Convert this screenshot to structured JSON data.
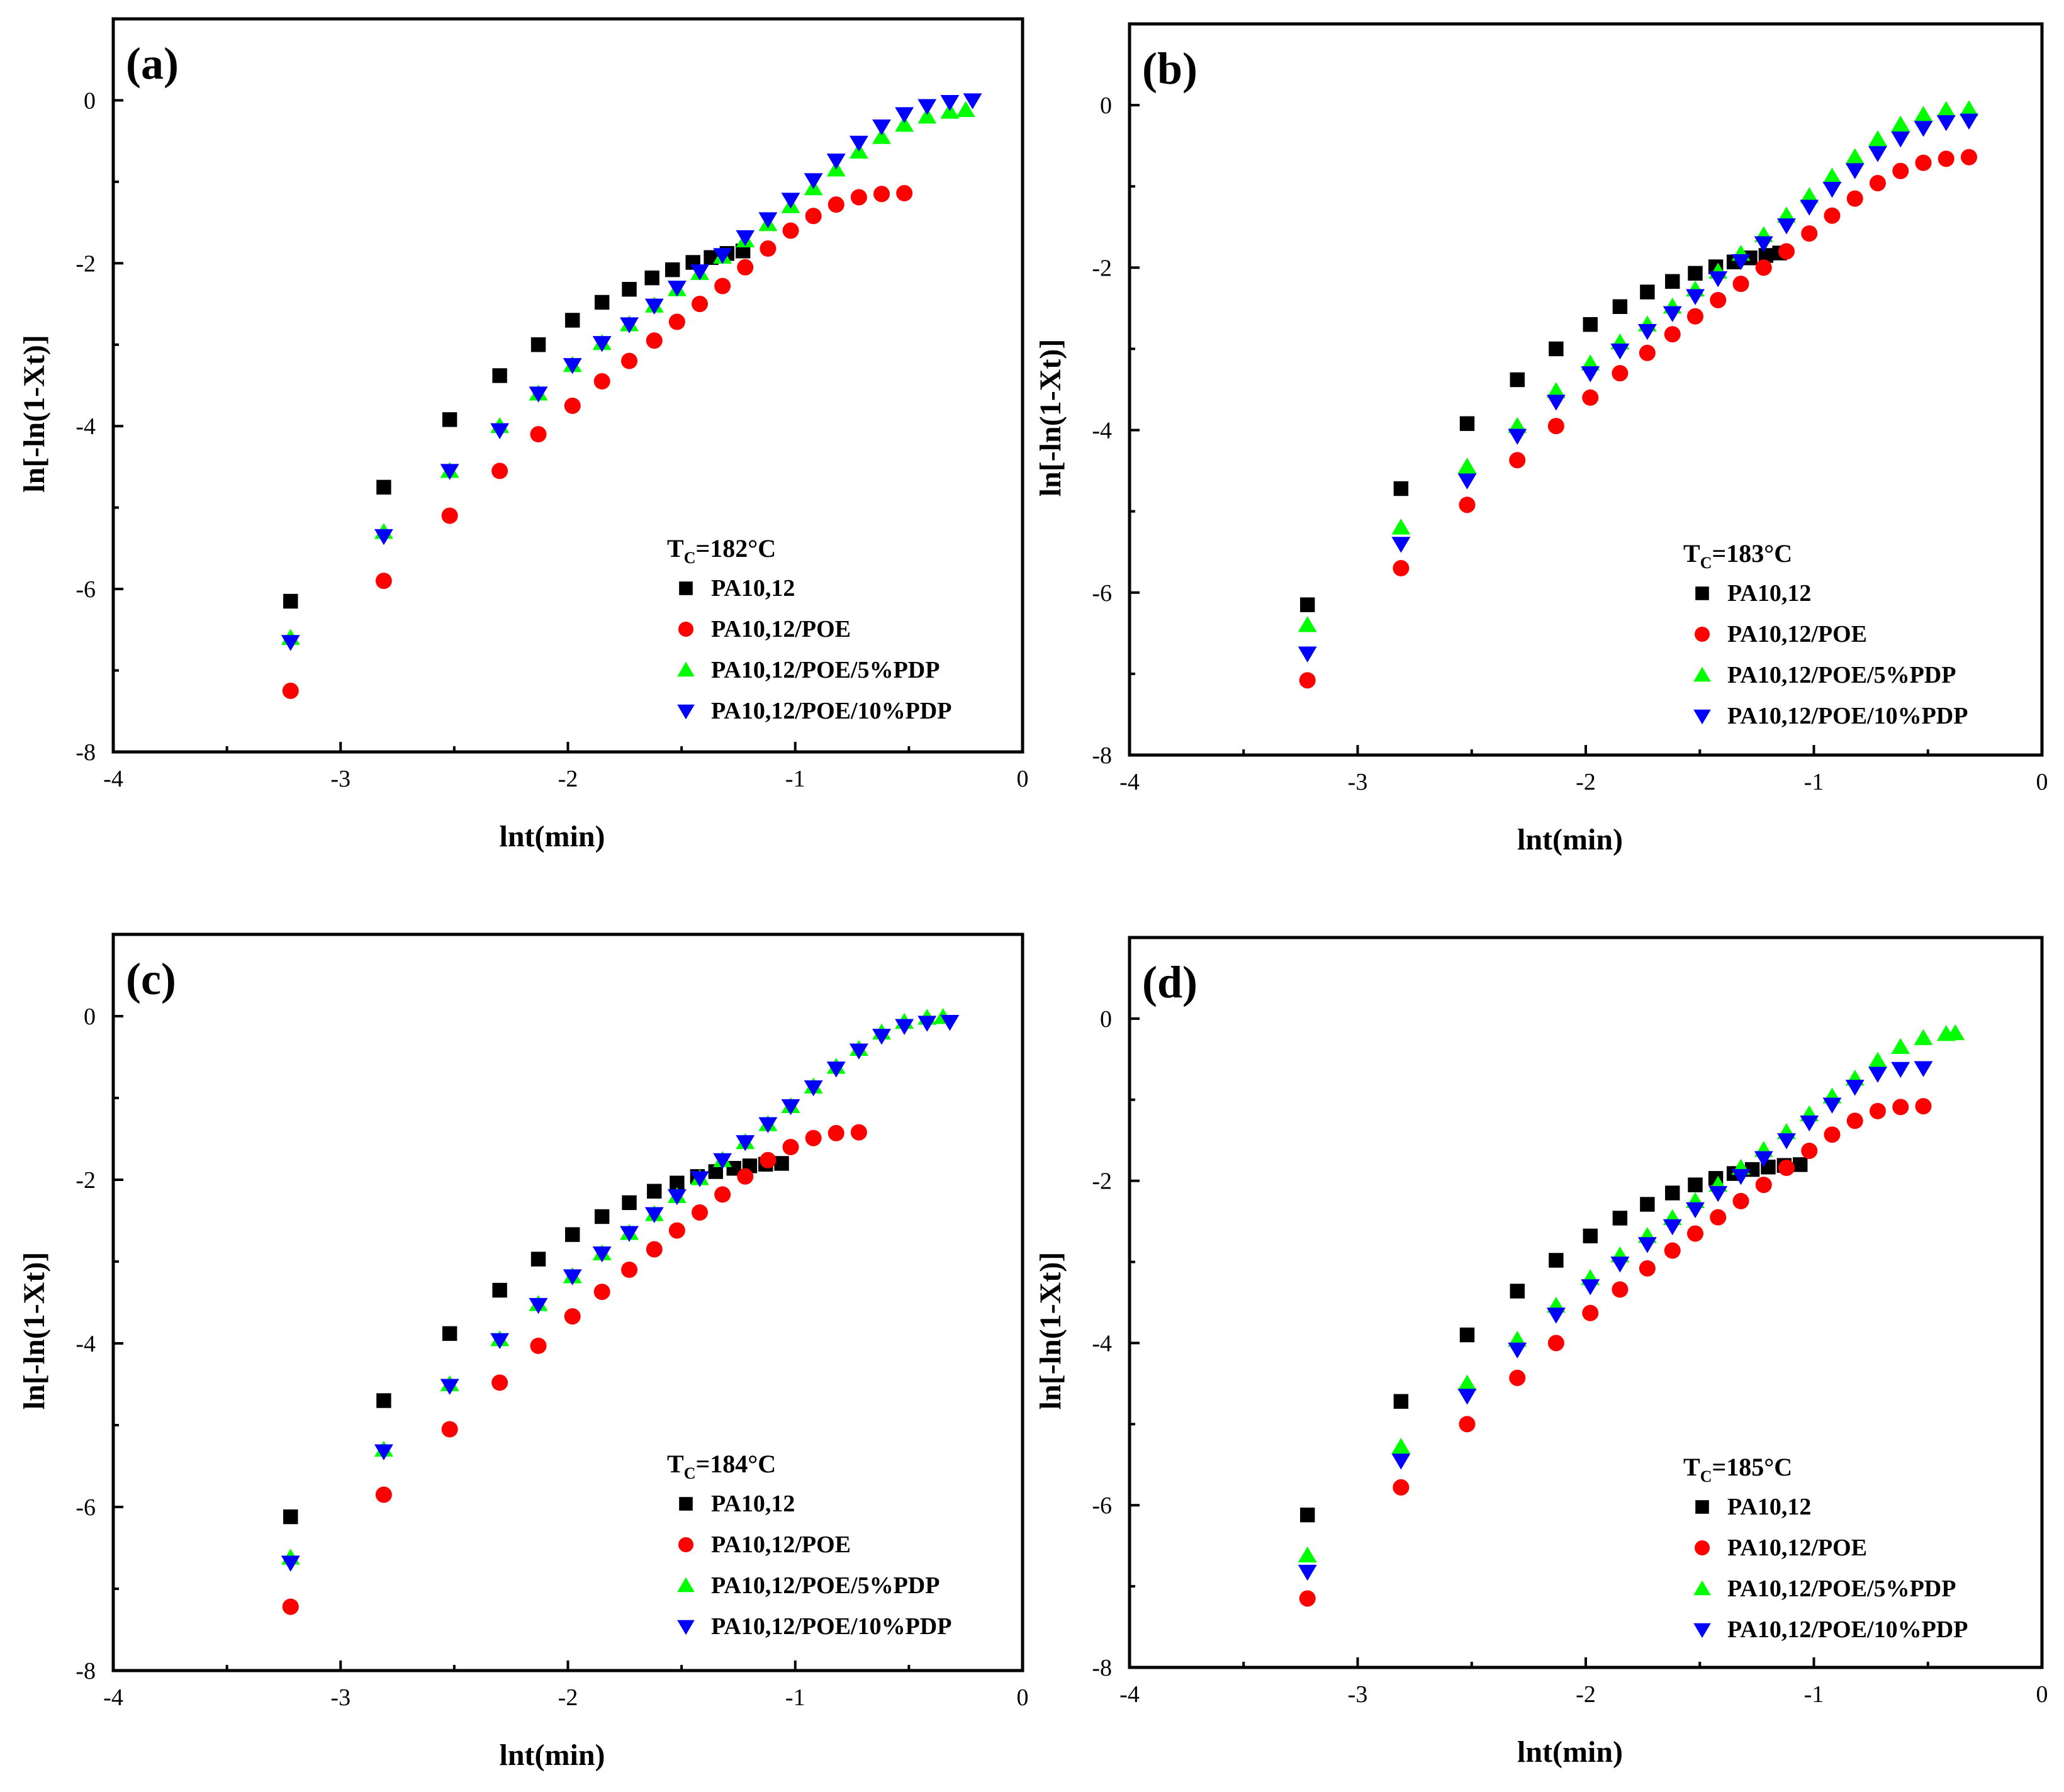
{
  "colors": {
    "PA10,12": "#000000",
    "PA10,12/POE": "#ff0000",
    "PA10,12/POE/5%PDP": "#00ff00",
    "PA10,12/POE/10%PDP": "#0000ff"
  },
  "markers": {
    "PA10,12": "square",
    "PA10,12/POE": "circle",
    "PA10,12/POE/5%PDP": "triangle-up",
    "PA10,12/POE/10%PDP": "triangle-down"
  },
  "chart_data": [
    {
      "panel": "(a)",
      "type": "scatter",
      "xlabel": "lnt(min)",
      "ylabel": "ln[-ln(1-Xt)]",
      "xlim": [
        -4,
        0
      ],
      "ylim": [
        -8,
        1
      ],
      "xticks": [
        "-4",
        "-3",
        "-2",
        "-1",
        "0"
      ],
      "yticks": [
        "0",
        "-2",
        "-4",
        "-6",
        "-8"
      ],
      "legend_title_main": "T",
      "legend_title_sub": "C",
      "legend_title_rest": "=182°C",
      "series": [
        {
          "name": "PA10,12",
          "x": [
            -3.22,
            -2.81,
            -2.52,
            -2.3,
            -2.13,
            -1.98,
            -1.85,
            -1.73,
            -1.63,
            -1.54,
            -1.45,
            -1.37,
            -1.3,
            -1.23
          ],
          "y": [
            -6.15,
            -4.75,
            -3.92,
            -3.38,
            -3.0,
            -2.7,
            -2.48,
            -2.32,
            -2.18,
            -2.08,
            -1.99,
            -1.93,
            -1.88,
            -1.85
          ]
        },
        {
          "name": "PA10,12/POE",
          "x": [
            -3.22,
            -2.81,
            -2.52,
            -2.3,
            -2.13,
            -1.98,
            -1.85,
            -1.73,
            -1.62,
            -1.52,
            -1.42,
            -1.32,
            -1.22,
            -1.12,
            -1.02,
            -0.92,
            -0.82,
            -0.72,
            -0.62,
            -0.52
          ],
          "y": [
            -7.25,
            -5.9,
            -5.1,
            -4.55,
            -4.1,
            -3.75,
            -3.45,
            -3.2,
            -2.95,
            -2.72,
            -2.5,
            -2.28,
            -2.05,
            -1.82,
            -1.6,
            -1.42,
            -1.28,
            -1.19,
            -1.15,
            -1.14
          ]
        },
        {
          "name": "PA10,12/POE/5%PDP",
          "x": [
            -3.22,
            -2.81,
            -2.52,
            -2.3,
            -2.13,
            -1.98,
            -1.85,
            -1.73,
            -1.62,
            -1.52,
            -1.42,
            -1.32,
            -1.22,
            -1.12,
            -1.02,
            -0.92,
            -0.82,
            -0.72,
            -0.62,
            -0.52,
            -0.42,
            -0.32,
            -0.25
          ],
          "y": [
            -6.6,
            -5.3,
            -4.55,
            -4.0,
            -3.6,
            -3.25,
            -2.98,
            -2.75,
            -2.52,
            -2.32,
            -2.12,
            -1.92,
            -1.72,
            -1.52,
            -1.3,
            -1.08,
            -0.85,
            -0.63,
            -0.45,
            -0.3,
            -0.2,
            -0.14,
            -0.12
          ]
        },
        {
          "name": "PA10,12/POE/10%PDP",
          "x": [
            -3.22,
            -2.81,
            -2.52,
            -2.3,
            -2.13,
            -1.98,
            -1.85,
            -1.73,
            -1.62,
            -1.52,
            -1.42,
            -1.32,
            -1.22,
            -1.12,
            -1.02,
            -0.92,
            -0.82,
            -0.72,
            -0.62,
            -0.52,
            -0.42,
            -0.32,
            -0.22
          ],
          "y": [
            -6.65,
            -5.35,
            -4.55,
            -4.05,
            -3.6,
            -3.25,
            -2.98,
            -2.75,
            -2.52,
            -2.3,
            -2.1,
            -1.9,
            -1.68,
            -1.46,
            -1.22,
            -0.98,
            -0.74,
            -0.52,
            -0.32,
            -0.17,
            -0.07,
            -0.02,
            0.0
          ]
        }
      ]
    },
    {
      "panel": "(b)",
      "type": "scatter",
      "xlabel": "lnt(min)",
      "ylabel": "ln[-ln(1-Xt)]",
      "xlim": [
        -4,
        0
      ],
      "ylim": [
        -8,
        1
      ],
      "xticks": [
        "-4",
        "-3",
        "-2",
        "-1",
        "0"
      ],
      "yticks": [
        "0",
        "-2",
        "-4",
        "-6",
        "-8"
      ],
      "legend_title_main": "T",
      "legend_title_sub": "C",
      "legend_title_rest": "=183°C",
      "series": [
        {
          "name": "PA10,12",
          "x": [
            -3.22,
            -2.81,
            -2.52,
            -2.3,
            -2.13,
            -1.98,
            -1.85,
            -1.73,
            -1.62,
            -1.52,
            -1.43,
            -1.35,
            -1.28,
            -1.21,
            -1.15
          ],
          "y": [
            -6.15,
            -4.72,
            -3.92,
            -3.38,
            -3.0,
            -2.7,
            -2.48,
            -2.3,
            -2.17,
            -2.07,
            -1.99,
            -1.93,
            -1.88,
            -1.85,
            -1.82
          ]
        },
        {
          "name": "PA10,12/POE",
          "x": [
            -3.22,
            -2.81,
            -2.52,
            -2.3,
            -2.13,
            -1.98,
            -1.85,
            -1.73,
            -1.62,
            -1.52,
            -1.42,
            -1.32,
            -1.22,
            -1.12,
            -1.02,
            -0.92,
            -0.82,
            -0.72,
            -0.62,
            -0.52,
            -0.42,
            -0.32
          ],
          "y": [
            -7.08,
            -5.7,
            -4.92,
            -4.37,
            -3.95,
            -3.6,
            -3.3,
            -3.05,
            -2.82,
            -2.6,
            -2.4,
            -2.2,
            -2.0,
            -1.8,
            -1.58,
            -1.36,
            -1.15,
            -0.96,
            -0.81,
            -0.71,
            -0.66,
            -0.64
          ]
        },
        {
          "name": "PA10,12/POE/5%PDP",
          "x": [
            -3.22,
            -2.81,
            -2.52,
            -2.3,
            -2.13,
            -1.98,
            -1.85,
            -1.73,
            -1.62,
            -1.52,
            -1.42,
            -1.32,
            -1.22,
            -1.12,
            -1.02,
            -0.92,
            -0.82,
            -0.72,
            -0.62,
            -0.52,
            -0.42,
            -0.32
          ],
          "y": [
            -6.4,
            -5.2,
            -4.45,
            -3.95,
            -3.52,
            -3.18,
            -2.92,
            -2.7,
            -2.48,
            -2.27,
            -2.05,
            -1.83,
            -1.6,
            -1.36,
            -1.12,
            -0.88,
            -0.64,
            -0.42,
            -0.24,
            -0.12,
            -0.06,
            -0.05
          ]
        },
        {
          "name": "PA10,12/POE/10%PDP",
          "x": [
            -3.22,
            -2.81,
            -2.52,
            -2.3,
            -2.13,
            -1.98,
            -1.85,
            -1.73,
            -1.62,
            -1.52,
            -1.42,
            -1.32,
            -1.22,
            -1.12,
            -1.02,
            -0.92,
            -0.82,
            -0.72,
            -0.62,
            -0.52,
            -0.42,
            -0.32
          ],
          "y": [
            -6.75,
            -5.4,
            -4.62,
            -4.07,
            -3.65,
            -3.3,
            -3.02,
            -2.78,
            -2.56,
            -2.35,
            -2.13,
            -1.92,
            -1.7,
            -1.48,
            -1.25,
            -1.03,
            -0.8,
            -0.59,
            -0.41,
            -0.28,
            -0.21,
            -0.19
          ]
        }
      ]
    },
    {
      "panel": "(c)",
      "type": "scatter",
      "xlabel": "lnt(min)",
      "ylabel": "ln[-ln(1-Xt)]",
      "xlim": [
        -4,
        0
      ],
      "ylim": [
        -8,
        1
      ],
      "xticks": [
        "-4",
        "-3",
        "-2",
        "-1",
        "0"
      ],
      "yticks": [
        "0",
        "-2",
        "-4",
        "-6",
        "-8"
      ],
      "legend_title_main": "T",
      "legend_title_sub": "C",
      "legend_title_rest": "=184°C",
      "series": [
        {
          "name": "PA10,12",
          "x": [
            -3.22,
            -2.81,
            -2.52,
            -2.3,
            -2.13,
            -1.98,
            -1.85,
            -1.73,
            -1.62,
            -1.52,
            -1.43,
            -1.35,
            -1.27,
            -1.2,
            -1.13,
            -1.06
          ],
          "y": [
            -6.12,
            -4.7,
            -3.88,
            -3.35,
            -2.97,
            -2.67,
            -2.45,
            -2.28,
            -2.14,
            -2.04,
            -1.96,
            -1.9,
            -1.86,
            -1.83,
            -1.81,
            -1.8
          ]
        },
        {
          "name": "PA10,12/POE",
          "x": [
            -3.22,
            -2.81,
            -2.52,
            -2.3,
            -2.13,
            -1.98,
            -1.85,
            -1.73,
            -1.62,
            -1.52,
            -1.42,
            -1.32,
            -1.22,
            -1.12,
            -1.02,
            -0.92,
            -0.82,
            -0.72
          ],
          "y": [
            -7.22,
            -5.85,
            -5.05,
            -4.48,
            -4.03,
            -3.67,
            -3.37,
            -3.1,
            -2.85,
            -2.62,
            -2.4,
            -2.18,
            -1.96,
            -1.76,
            -1.6,
            -1.49,
            -1.43,
            -1.42
          ]
        },
        {
          "name": "PA10,12/POE/5%PDP",
          "x": [
            -3.22,
            -2.81,
            -2.52,
            -2.3,
            -2.13,
            -1.98,
            -1.85,
            -1.73,
            -1.62,
            -1.52,
            -1.42,
            -1.32,
            -1.22,
            -1.12,
            -1.02,
            -0.92,
            -0.82,
            -0.72,
            -0.62,
            -0.52,
            -0.42,
            -0.35
          ],
          "y": [
            -6.62,
            -5.3,
            -4.5,
            -3.95,
            -3.52,
            -3.18,
            -2.9,
            -2.65,
            -2.42,
            -2.2,
            -1.98,
            -1.76,
            -1.54,
            -1.32,
            -1.1,
            -0.86,
            -0.62,
            -0.4,
            -0.2,
            -0.07,
            -0.02,
            -0.01
          ]
        },
        {
          "name": "PA10,12/POE/10%PDP",
          "x": [
            -3.22,
            -2.81,
            -2.52,
            -2.3,
            -2.13,
            -1.98,
            -1.85,
            -1.73,
            -1.62,
            -1.52,
            -1.42,
            -1.32,
            -1.22,
            -1.12,
            -1.02,
            -0.92,
            -0.82,
            -0.72,
            -0.62,
            -0.52,
            -0.42,
            -0.32
          ],
          "y": [
            -6.68,
            -5.32,
            -4.52,
            -3.96,
            -3.53,
            -3.18,
            -2.9,
            -2.65,
            -2.42,
            -2.2,
            -1.98,
            -1.76,
            -1.54,
            -1.32,
            -1.1,
            -0.87,
            -0.64,
            -0.42,
            -0.24,
            -0.12,
            -0.08,
            -0.07
          ]
        }
      ]
    },
    {
      "panel": "(d)",
      "type": "scatter",
      "xlabel": "lnt(min)",
      "ylabel": "ln[-ln(1-Xt)]",
      "xlim": [
        -4,
        0
      ],
      "ylim": [
        -8,
        1
      ],
      "xticks": [
        "-4",
        "-3",
        "-2",
        "-1",
        "0"
      ],
      "yticks": [
        "0",
        "-2",
        "-4",
        "-6",
        "-8"
      ],
      "legend_title_main": "T",
      "legend_title_sub": "C",
      "legend_title_rest": "=185°C",
      "series": [
        {
          "name": "PA10,12",
          "x": [
            -3.22,
            -2.81,
            -2.52,
            -2.3,
            -2.13,
            -1.98,
            -1.85,
            -1.73,
            -1.62,
            -1.52,
            -1.43,
            -1.35,
            -1.27,
            -1.2,
            -1.13,
            -1.06
          ],
          "y": [
            -6.12,
            -4.72,
            -3.9,
            -3.36,
            -2.98,
            -2.68,
            -2.46,
            -2.29,
            -2.15,
            -2.05,
            -1.97,
            -1.91,
            -1.86,
            -1.83,
            -1.81,
            -1.8
          ]
        },
        {
          "name": "PA10,12/POE",
          "x": [
            -3.22,
            -2.81,
            -2.52,
            -2.3,
            -2.13,
            -1.98,
            -1.85,
            -1.73,
            -1.62,
            -1.52,
            -1.42,
            -1.32,
            -1.22,
            -1.12,
            -1.02,
            -0.92,
            -0.82,
            -0.72,
            -0.62,
            -0.52
          ],
          "y": [
            -7.15,
            -5.78,
            -5.0,
            -4.43,
            -4.0,
            -3.63,
            -3.34,
            -3.08,
            -2.86,
            -2.65,
            -2.45,
            -2.25,
            -2.05,
            -1.84,
            -1.63,
            -1.43,
            -1.26,
            -1.14,
            -1.09,
            -1.08
          ]
        },
        {
          "name": "PA10,12/POE/5%PDP",
          "x": [
            -3.22,
            -2.81,
            -2.52,
            -2.3,
            -2.13,
            -1.98,
            -1.85,
            -1.73,
            -1.62,
            -1.52,
            -1.42,
            -1.32,
            -1.22,
            -1.12,
            -1.02,
            -0.92,
            -0.82,
            -0.72,
            -0.62,
            -0.52,
            -0.42,
            -0.38
          ],
          "y": [
            -6.62,
            -5.28,
            -4.5,
            -3.96,
            -3.54,
            -3.2,
            -2.92,
            -2.68,
            -2.46,
            -2.25,
            -2.05,
            -1.84,
            -1.62,
            -1.4,
            -1.18,
            -0.96,
            -0.74,
            -0.52,
            -0.35,
            -0.24,
            -0.19,
            -0.18
          ]
        },
        {
          "name": "PA10,12/POE/10%PDP",
          "x": [
            -3.22,
            -2.81,
            -2.52,
            -2.3,
            -2.13,
            -1.98,
            -1.85,
            -1.73,
            -1.62,
            -1.52,
            -1.42,
            -1.32,
            -1.22,
            -1.12,
            -1.02,
            -0.92,
            -0.82,
            -0.72,
            -0.62,
            -0.52
          ],
          "y": [
            -6.82,
            -5.45,
            -4.65,
            -4.08,
            -3.65,
            -3.3,
            -3.02,
            -2.78,
            -2.56,
            -2.35,
            -2.15,
            -1.94,
            -1.72,
            -1.5,
            -1.28,
            -1.06,
            -0.84,
            -0.68,
            -0.62,
            -0.61
          ]
        }
      ]
    }
  ]
}
